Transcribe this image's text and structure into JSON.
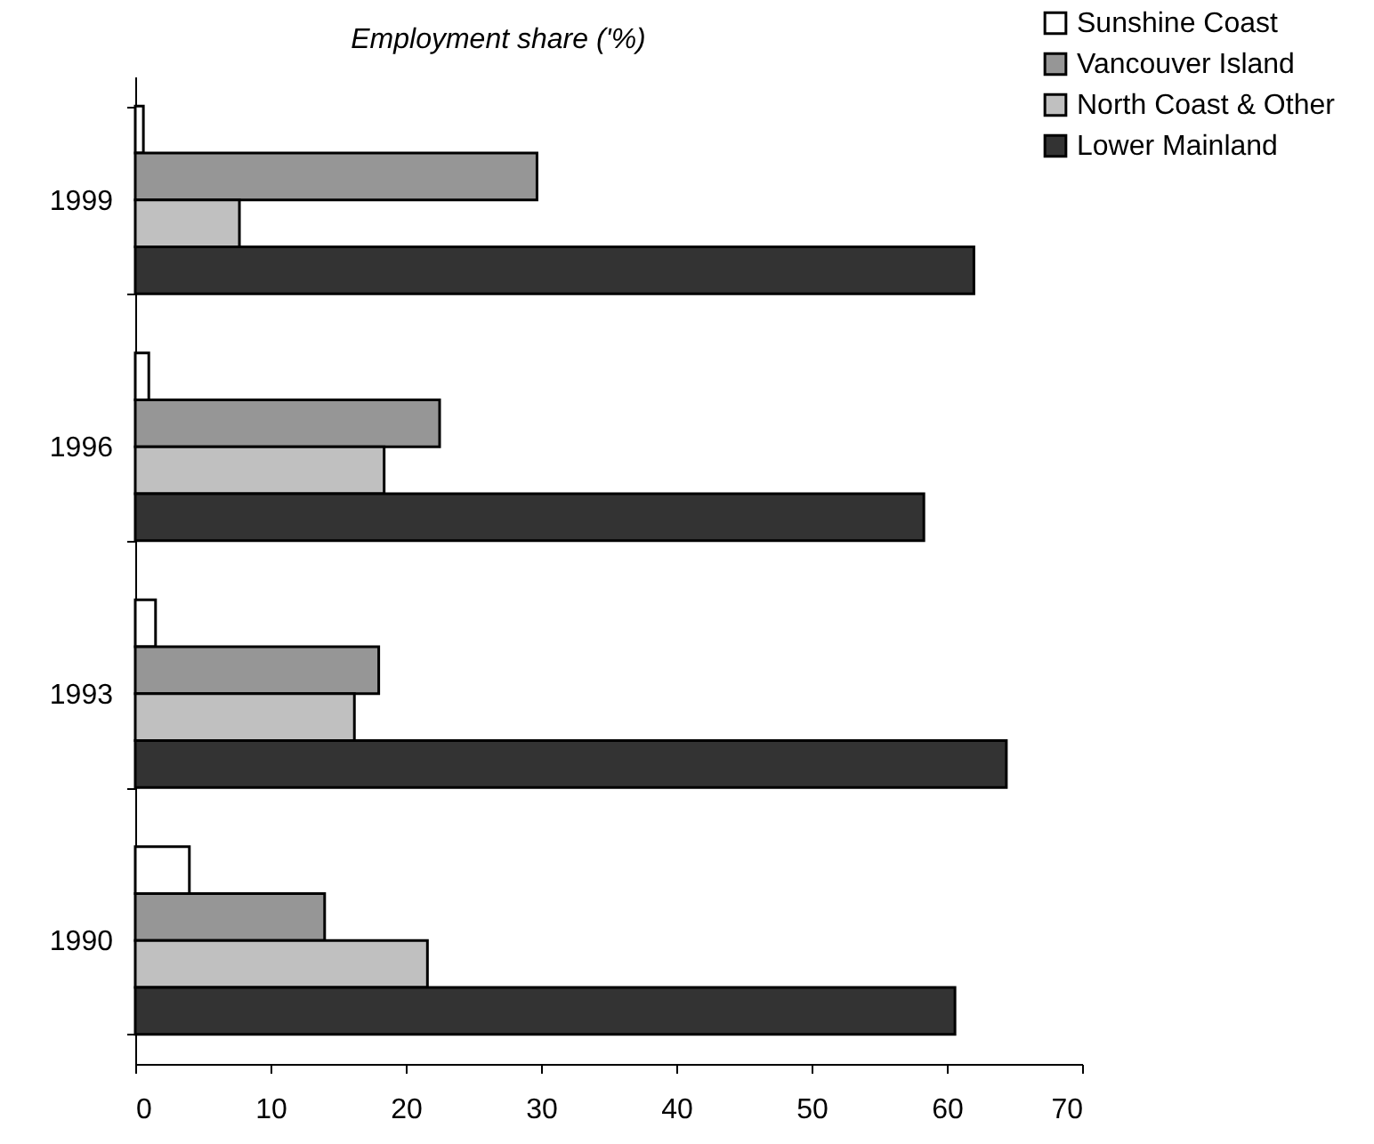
{
  "chart_data": {
    "type": "bar",
    "orientation": "horizontal",
    "title": "Employment share ('%)",
    "categories": [
      "1999",
      "1996",
      "1993",
      "1990"
    ],
    "series": [
      {
        "name": "Sunshine Coast",
        "color": "#ffffff",
        "values": [
          0.6,
          1.0,
          1.5,
          4.0
        ]
      },
      {
        "name": "Vancouver Island",
        "color": "#969696",
        "values": [
          29.7,
          22.5,
          18.0,
          14.0
        ]
      },
      {
        "name": "North Coast & Other",
        "color": "#c0c0c0",
        "values": [
          7.7,
          18.4,
          16.2,
          21.6
        ]
      },
      {
        "name": "Lower Mainland",
        "color": "#333333",
        "values": [
          62.0,
          58.3,
          64.4,
          60.6
        ]
      }
    ],
    "xlim": [
      0,
      70
    ],
    "xticks": [
      0,
      10,
      20,
      30,
      40,
      50,
      60,
      70
    ],
    "grid": false,
    "legend": "top right"
  }
}
